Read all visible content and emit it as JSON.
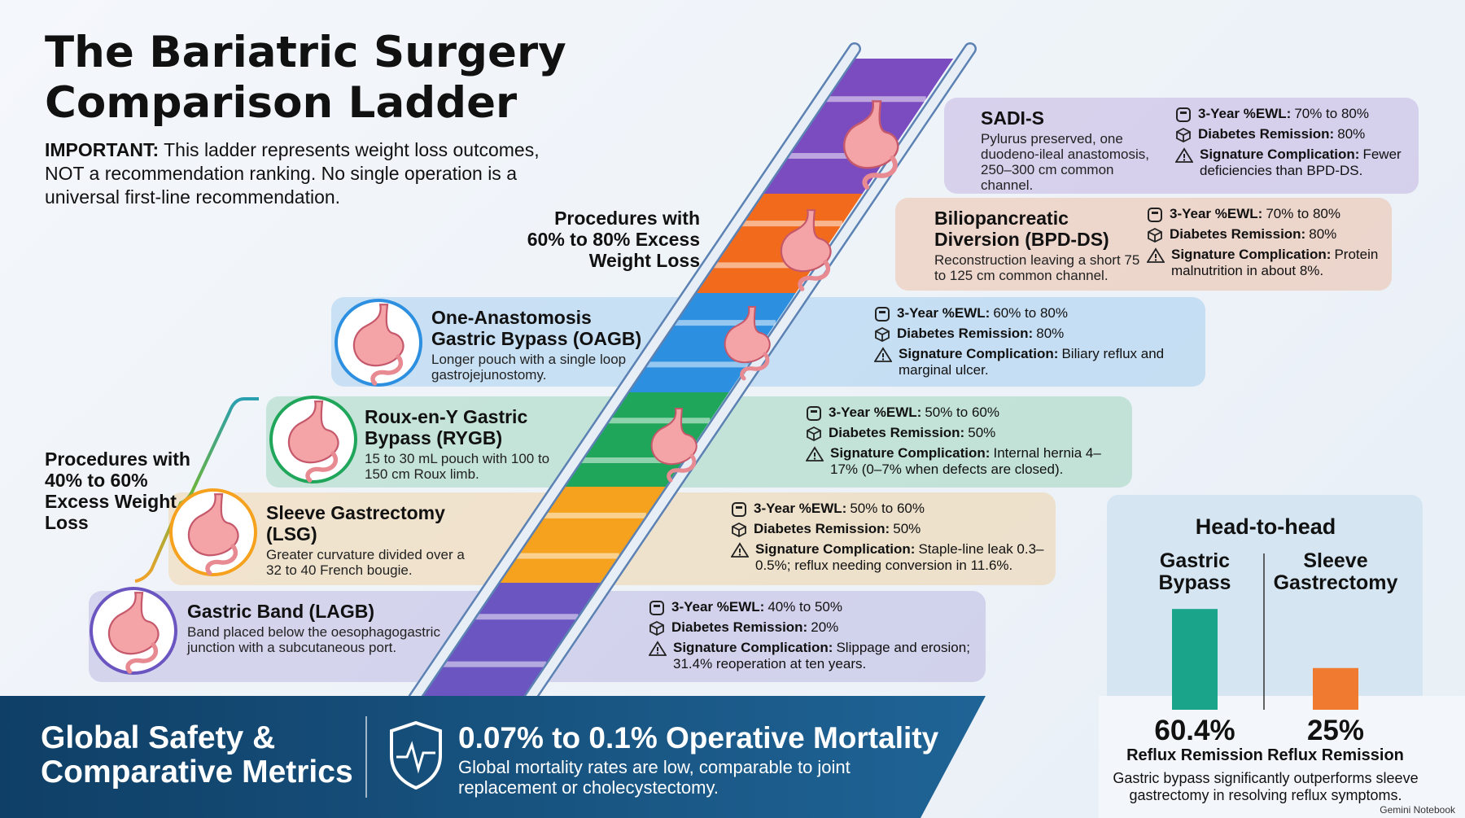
{
  "title": "The Bariatric Surgery Comparison Ladder",
  "note": {
    "label": "IMPORTANT:",
    "text": "This ladder represents weight loss outcomes, NOT a recommendation ranking. No single operation is a universal first-line recommendation."
  },
  "groups": [
    {
      "label": "Procedures with 60% to 80% Excess Weight Loss"
    },
    {
      "label": "Procedures with 40% to 60% Excess Weight Loss"
    }
  ],
  "stat_labels": {
    "ewl": "3-Year %EWL:",
    "diabetes": "Diabetes Remission:",
    "complication": "Signature Complication:"
  },
  "procedures": [
    {
      "name": "SADI-S",
      "description": "Pylurus preserved, one duodeno-ileal anastomosis, 250–300 cm common channel.",
      "ewl": "70% to 80%",
      "diabetes": "80%",
      "complication": "Fewer deficiencies than BPD-DS.",
      "color": "#7b4cbf"
    },
    {
      "name": "Biliopancreatic Diversion (BPD-DS)",
      "description": "Reconstruction leaving a short 75 to 125 cm common channel.",
      "ewl": "70% to 80%",
      "diabetes": "80%",
      "complication": "Protein malnutrition in about 8%.",
      "color": "#f26b1d"
    },
    {
      "name": "One-Anastomosis Gastric Bypass (OAGB)",
      "description": "Longer pouch with a single loop gastrojejunostomy.",
      "ewl": "60% to 80%",
      "diabetes": "80%",
      "complication": "Biliary reflux and marginal ulcer.",
      "color": "#2d8fe0"
    },
    {
      "name": "Roux-en-Y Gastric Bypass (RYGB)",
      "description": "15 to 30 mL pouch with 100 to 150 cm Roux limb.",
      "ewl": "50% to 60%",
      "diabetes": "50%",
      "complication": "Internal hernia 4–17% (0–7% when defects are closed).",
      "color": "#1fa65a"
    },
    {
      "name": "Sleeve Gastrectomy (LSG)",
      "description": "Greater curvature divided over a 32 to 40 French bougie.",
      "ewl": "50% to 60%",
      "diabetes": "50%",
      "complication": "Staple-line leak 0.3–0.5%; reflux needing conversion in 11.6%.",
      "color": "#f6a21e"
    },
    {
      "name": "Gastric Band (LAGB)",
      "description": "Band placed below the oesophagogastric junction with a subcutaneous port.",
      "ewl": "40% to 50%",
      "diabetes": "20%",
      "complication": "Slippage and erosion; 31.4% reoperation at ten years.",
      "color": "#6b55c0"
    }
  ],
  "footer": {
    "title": "Global Safety & Comparative Metrics",
    "heading": "0.07% to 0.1% Operative Mortality",
    "text": "Global mortality rates are low, comparable to joint replacement or cholecystectomy."
  },
  "head_to_head": {
    "title": "Head-to-head",
    "bars": [
      {
        "name": "Gastric Bypass",
        "value": 60.4,
        "value_label": "60.4%",
        "sublabel": "Reflux Remission",
        "color": "#1aa58b"
      },
      {
        "name": "Sleeve Gastrectomy",
        "value": 25,
        "value_label": "25%",
        "sublabel": "Reflux Remission",
        "color": "#f07a30"
      }
    ],
    "caption": "Gastric bypass significantly outperforms sleeve gastrectomy in resolving reflux symptoms."
  },
  "brand": "Gemini Notebook"
}
